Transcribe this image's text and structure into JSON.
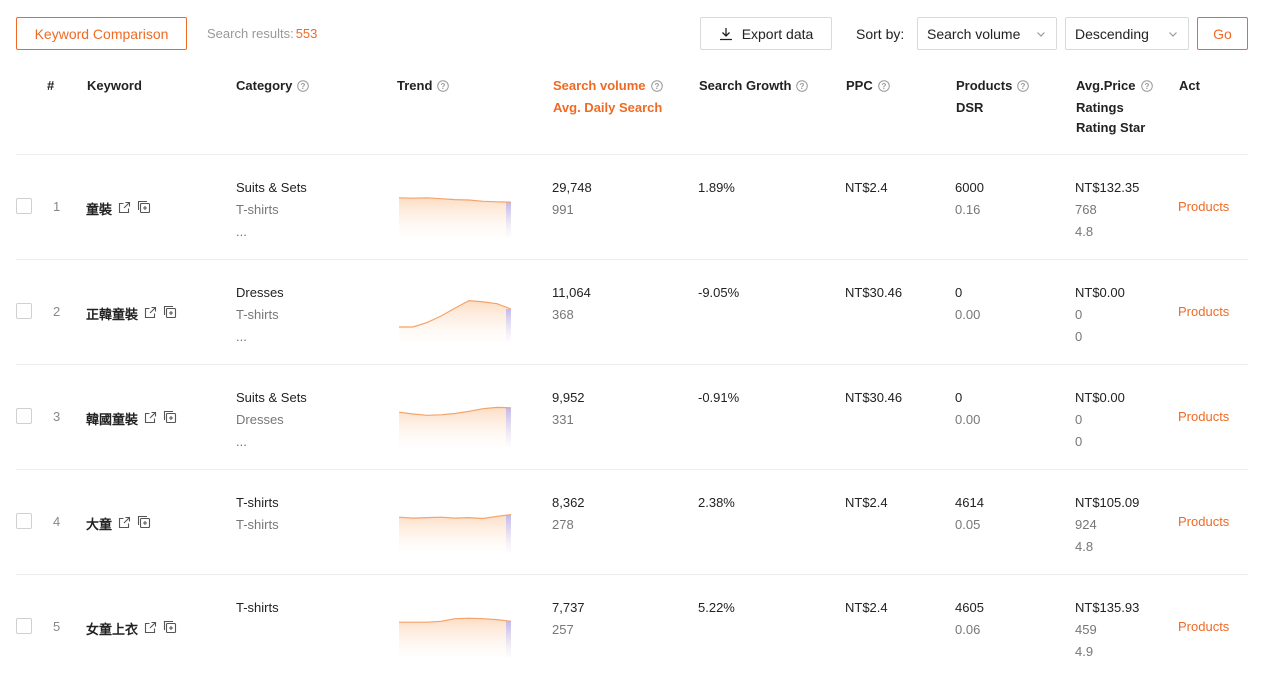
{
  "toolbar": {
    "compare_label": "Keyword Comparison",
    "results_label": "Search results:",
    "results_count": "553",
    "export_label": "Export data",
    "sort_label": "Sort by:",
    "sort_value": "Search volume",
    "order_value": "Descending",
    "go_label": "Go"
  },
  "headers": {
    "num": "#",
    "keyword": "Keyword",
    "category": "Category",
    "trend": "Trend",
    "volume": "Search volume",
    "daily": "Avg. Daily Search",
    "growth": "Search Growth",
    "ppc": "PPC",
    "products": "Products",
    "dsr": "DSR",
    "price": "Avg.Price",
    "ratings": "Ratings",
    "star": "Rating Star",
    "act": "Act"
  },
  "accent_color": "#f06a24",
  "icons": [
    "download-icon",
    "chevron-down-icon",
    "question-icon",
    "external-link-icon",
    "copy-icon"
  ],
  "rows": [
    {
      "num": "1",
      "keyword": "童裝",
      "cat1": "Suits & Sets",
      "cat2": "T-shirts",
      "cat3": "...",
      "volume": "29,748",
      "daily": "991",
      "growth": "1.89%",
      "ppc": "NT$2.4",
      "products": "6000",
      "dsr": "0.16",
      "price": "NT$132.35",
      "ratings": "768",
      "star": "4.8",
      "action": "Products",
      "trend": [
        0.8,
        0.79,
        0.8,
        0.78,
        0.76,
        0.75,
        0.72,
        0.71,
        0.7
      ]
    },
    {
      "num": "2",
      "keyword": "正韓童裝",
      "cat1": "Dresses",
      "cat2": "T-shirts",
      "cat3": "...",
      "volume": "11,064",
      "daily": "368",
      "growth": "-9.05%",
      "ppc": "NT$30.46",
      "products": "0",
      "dsr": "0.00",
      "price": "NT$0.00",
      "ratings": "0",
      "star": "0",
      "action": "Products",
      "trend": [
        0.25,
        0.25,
        0.35,
        0.5,
        0.68,
        0.85,
        0.82,
        0.78,
        0.66
      ]
    },
    {
      "num": "3",
      "keyword": "韓國童裝",
      "cat1": "Suits & Sets",
      "cat2": "Dresses",
      "cat3": "...",
      "volume": "9,952",
      "daily": "331",
      "growth": "-0.91%",
      "ppc": "NT$30.46",
      "products": "0",
      "dsr": "0.00",
      "price": "NT$0.00",
      "ratings": "0",
      "star": "0",
      "action": "Products",
      "trend": [
        0.7,
        0.66,
        0.63,
        0.64,
        0.67,
        0.72,
        0.78,
        0.81,
        0.8
      ]
    },
    {
      "num": "4",
      "keyword": "大童",
      "cat1": "T-shirts",
      "cat2": "T-shirts",
      "cat3": "",
      "volume": "8,362",
      "daily": "278",
      "growth": "2.38%",
      "ppc": "NT$2.4",
      "products": "4614",
      "dsr": "0.05",
      "price": "NT$105.09",
      "ratings": "924",
      "star": "4.8",
      "action": "Products",
      "trend": [
        0.7,
        0.68,
        0.69,
        0.7,
        0.68,
        0.69,
        0.67,
        0.72,
        0.76
      ]
    },
    {
      "num": "5",
      "keyword": "女童上衣",
      "cat1": "T-shirts",
      "cat2": "",
      "cat3": "",
      "volume": "7,737",
      "daily": "257",
      "growth": "5.22%",
      "ppc": "NT$2.4",
      "products": "4605",
      "dsr": "0.06",
      "price": "NT$135.93",
      "ratings": "459",
      "star": "4.9",
      "action": "Products",
      "trend": [
        0.7,
        0.7,
        0.7,
        0.72,
        0.78,
        0.79,
        0.78,
        0.76,
        0.72
      ]
    }
  ]
}
